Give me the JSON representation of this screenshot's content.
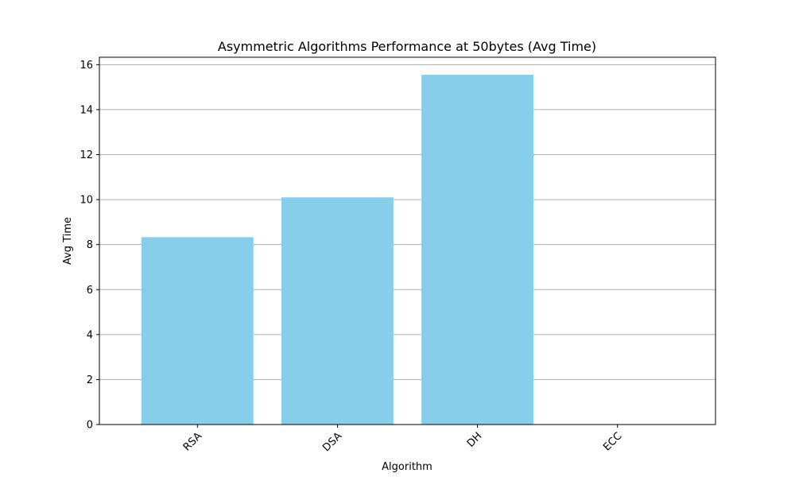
{
  "chart_data": {
    "type": "bar",
    "title": "Asymmetric Algorithms Performance at 50bytes (Avg Time)",
    "xlabel": "Algorithm",
    "ylabel": "Avg Time",
    "categories": [
      "RSA",
      "DSA",
      "DH",
      "ECC"
    ],
    "values": [
      8.33,
      10.1,
      15.55,
      0.0
    ],
    "ylim": [
      0,
      16.33
    ],
    "yticks": [
      0,
      2,
      4,
      6,
      8,
      10,
      12,
      14,
      16
    ],
    "ytick_labels": [
      "0",
      "2",
      "4",
      "6",
      "8",
      "10",
      "12",
      "14",
      "16"
    ],
    "grid": "y",
    "bar_color": "#87ceeb",
    "grid_color": "#b0b0b0",
    "axis_color": "#000000"
  }
}
